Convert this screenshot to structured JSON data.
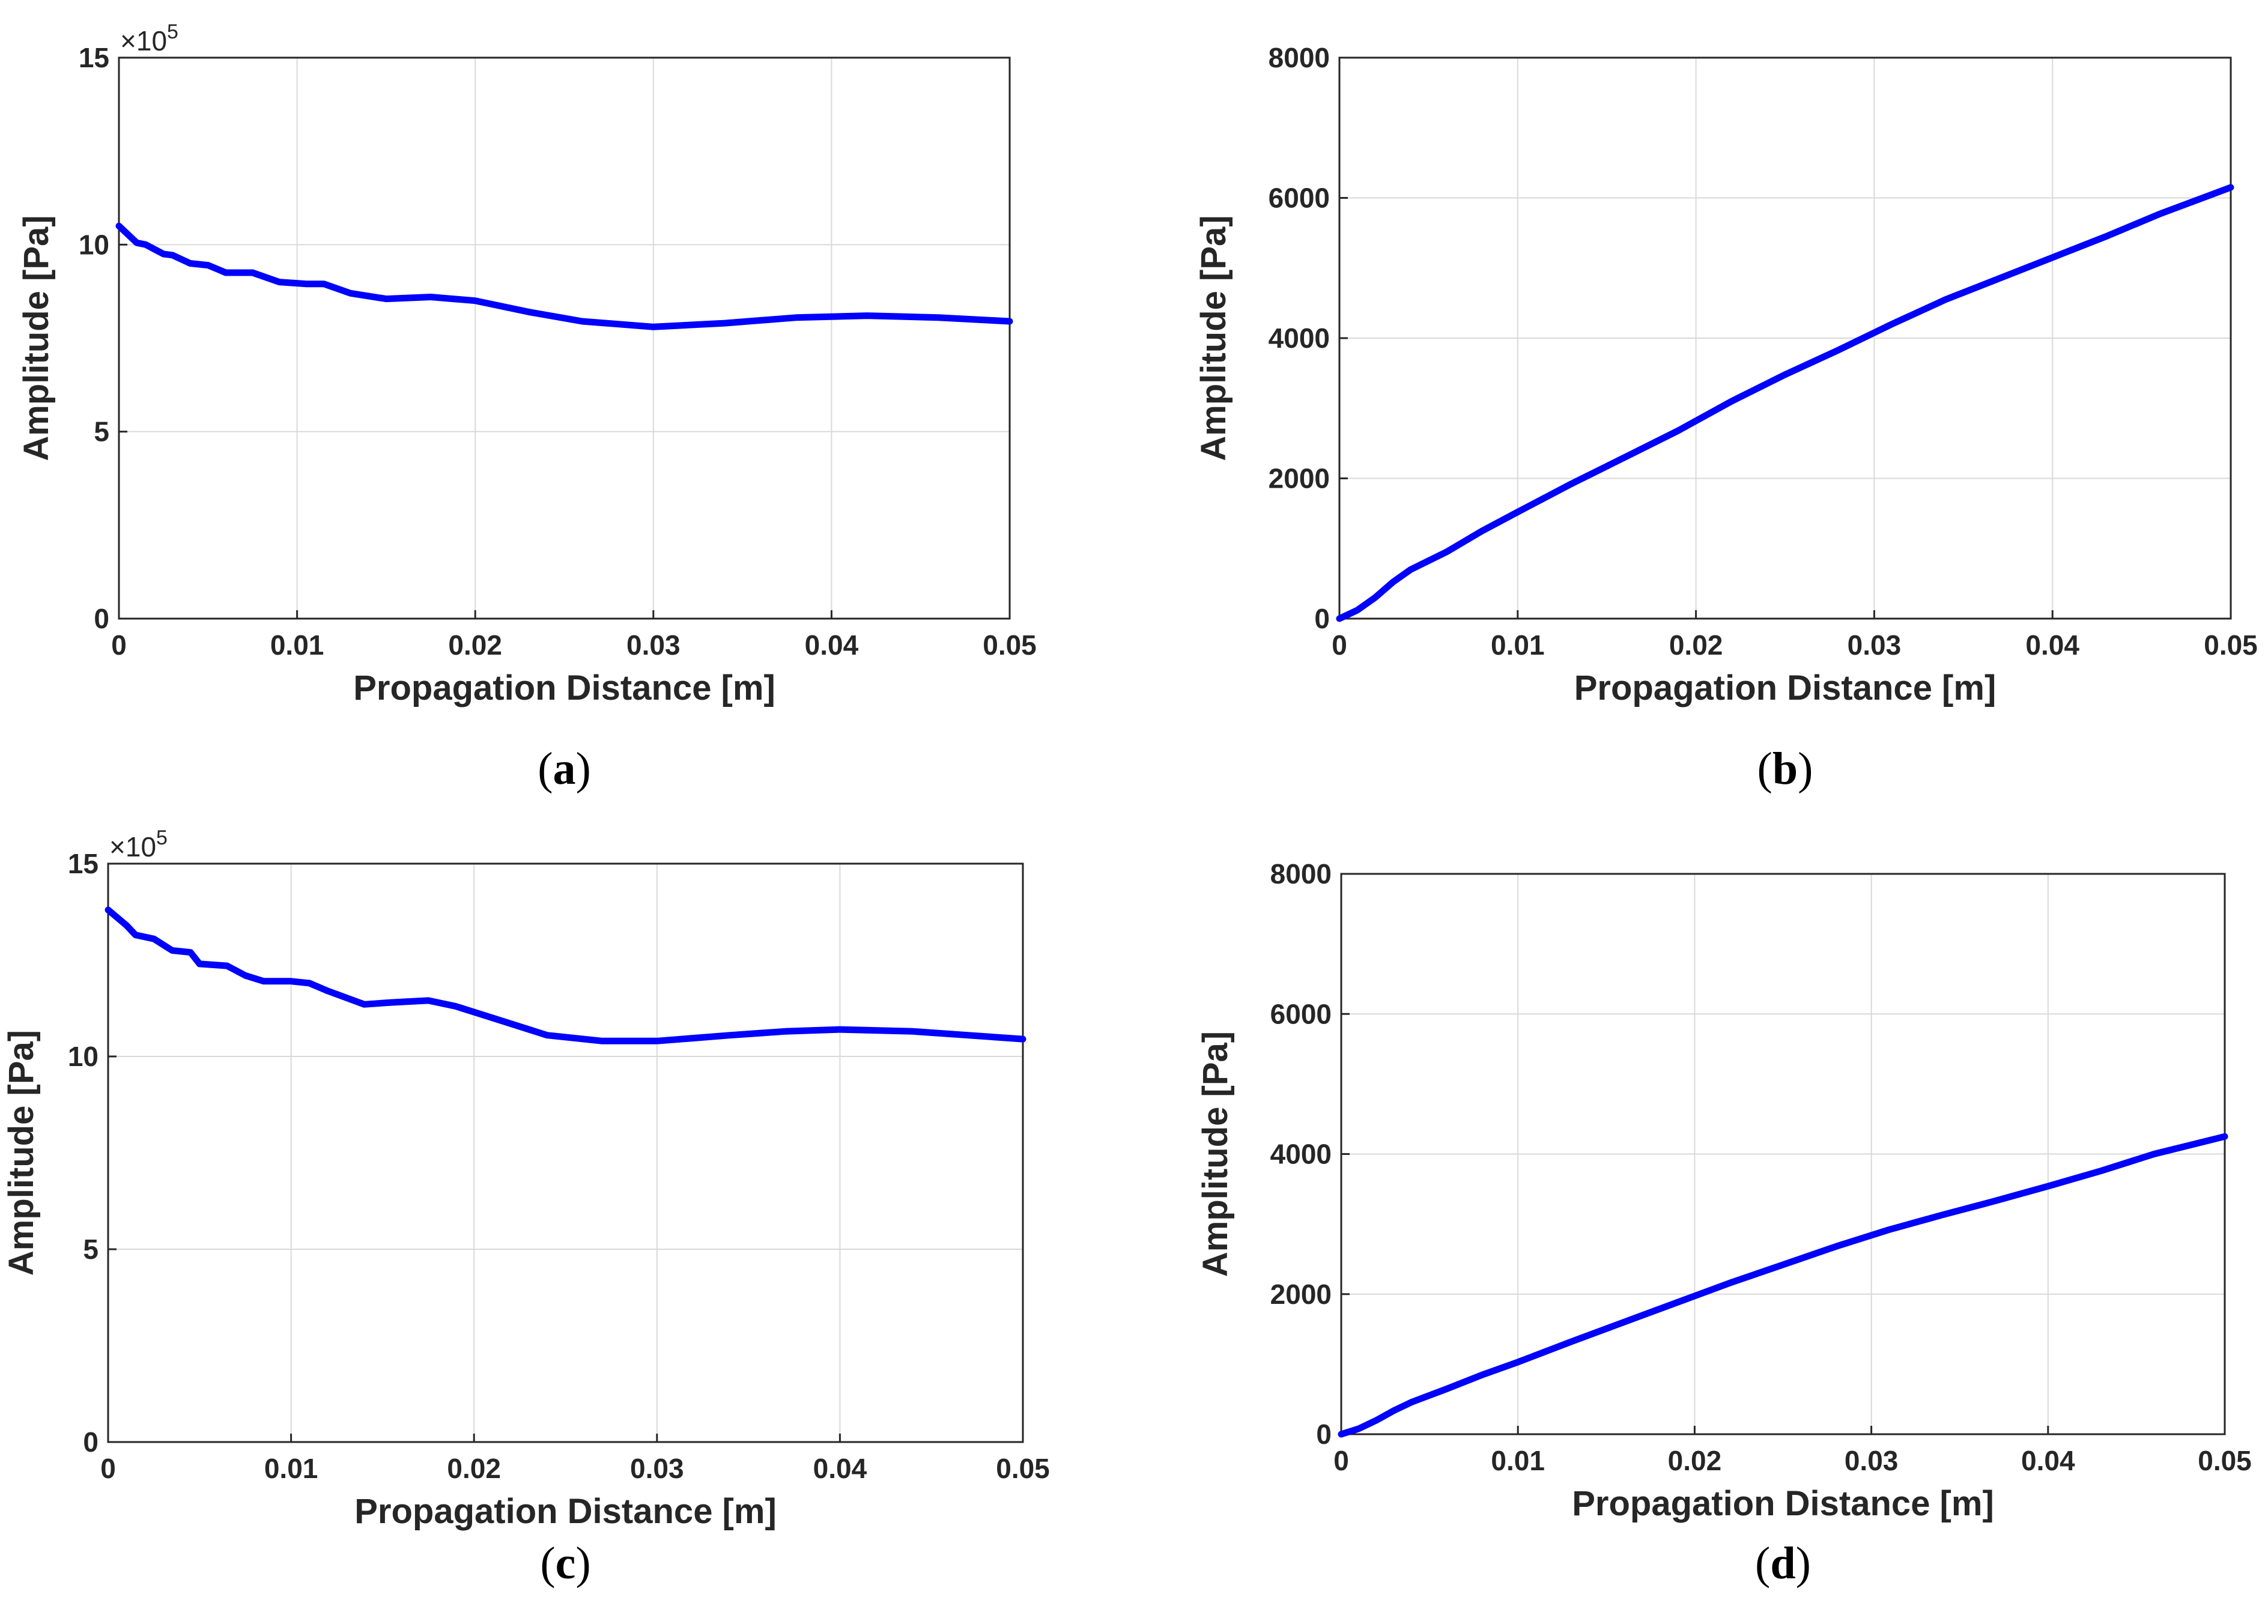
{
  "colors": {
    "series": "#0000ff",
    "axis": "#262626",
    "grid": "#d9d9d9",
    "background": "#ffffff"
  },
  "chart_data": [
    {
      "panel": "a",
      "type": "line",
      "caption": {
        "open": "(",
        "letter": "a",
        "close": ")"
      },
      "title": "",
      "xlabel": "Propagation Distance [m]",
      "ylabel": "Amplitude [Pa]",
      "xlim": [
        0,
        0.05
      ],
      "ylim": [
        0,
        15
      ],
      "x_ticks": [
        "0",
        "0.01",
        "0.02",
        "0.03",
        "0.04",
        "0.05"
      ],
      "y_ticks": [
        "0",
        "5",
        "10",
        "15"
      ],
      "y_scale": {
        "text": "×10",
        "exponent": "5"
      },
      "grid": true,
      "series": [
        {
          "name": "Amplitude",
          "x": [
            0,
            0.001,
            0.0015,
            0.0025,
            0.003,
            0.004,
            0.005,
            0.006,
            0.0075,
            0.009,
            0.0105,
            0.0115,
            0.013,
            0.015,
            0.0175,
            0.02,
            0.023,
            0.026,
            0.03,
            0.034,
            0.038,
            0.042,
            0.046,
            0.05
          ],
          "y": [
            10.5,
            10.05,
            10.0,
            9.75,
            9.72,
            9.5,
            9.45,
            9.25,
            9.25,
            9.0,
            8.95,
            8.95,
            8.7,
            8.55,
            8.6,
            8.5,
            8.2,
            7.95,
            7.8,
            7.9,
            8.05,
            8.1,
            8.05,
            7.95
          ]
        }
      ]
    },
    {
      "panel": "b",
      "type": "line",
      "caption": {
        "open": "(",
        "letter": "b",
        "close": ")"
      },
      "title": "",
      "xlabel": "Propagation Distance [m]",
      "ylabel": "Amplitude [Pa]",
      "xlim": [
        0,
        0.05
      ],
      "ylim": [
        0,
        8000
      ],
      "x_ticks": [
        "0",
        "0.01",
        "0.02",
        "0.03",
        "0.04",
        "0.05"
      ],
      "y_ticks": [
        "0",
        "2000",
        "4000",
        "6000",
        "8000"
      ],
      "grid": true,
      "series": [
        {
          "name": "Amplitude",
          "x": [
            0,
            0.001,
            0.002,
            0.003,
            0.004,
            0.006,
            0.008,
            0.01,
            0.013,
            0.016,
            0.019,
            0.022,
            0.025,
            0.028,
            0.031,
            0.034,
            0.037,
            0.04,
            0.043,
            0.046,
            0.05
          ],
          "y": [
            0,
            120,
            300,
            520,
            700,
            950,
            1250,
            1520,
            1920,
            2300,
            2680,
            3100,
            3480,
            3830,
            4200,
            4550,
            4850,
            5150,
            5450,
            5770,
            6150
          ]
        }
      ]
    },
    {
      "panel": "c",
      "type": "line",
      "caption": {
        "open": "(",
        "letter": "c",
        "close": ")"
      },
      "title": "",
      "xlabel": "Propagation Distance [m]",
      "ylabel": "Amplitude [Pa]",
      "xlim": [
        0,
        0.05
      ],
      "ylim": [
        0,
        15
      ],
      "x_ticks": [
        "0",
        "0.01",
        "0.02",
        "0.03",
        "0.04",
        "0.05"
      ],
      "y_ticks": [
        "0",
        "5",
        "10",
        "15"
      ],
      "y_scale": {
        "text": "×10",
        "exponent": "5"
      },
      "grid": true,
      "series": [
        {
          "name": "Amplitude",
          "x": [
            0,
            0.001,
            0.0015,
            0.002,
            0.0025,
            0.0035,
            0.0045,
            0.005,
            0.0065,
            0.0075,
            0.0085,
            0.01,
            0.011,
            0.012,
            0.014,
            0.0155,
            0.0175,
            0.019,
            0.021,
            0.024,
            0.027,
            0.03,
            0.034,
            0.037,
            0.04,
            0.044,
            0.047,
            0.05
          ],
          "y": [
            13.8,
            13.4,
            13.15,
            13.1,
            13.05,
            12.75,
            12.7,
            12.4,
            12.35,
            12.1,
            11.95,
            11.95,
            11.9,
            11.7,
            11.35,
            11.4,
            11.45,
            11.3,
            11.0,
            10.55,
            10.4,
            10.4,
            10.55,
            10.65,
            10.7,
            10.65,
            10.55,
            10.45
          ]
        }
      ]
    },
    {
      "panel": "d",
      "type": "line",
      "caption": {
        "open": "(",
        "letter": "d",
        "close": ")"
      },
      "title": "",
      "xlabel": "Propagation Distance [m]",
      "ylabel": "Amplitude [Pa]",
      "xlim": [
        0,
        0.05
      ],
      "ylim": [
        0,
        8000
      ],
      "x_ticks": [
        "0",
        "0.01",
        "0.02",
        "0.03",
        "0.04",
        "0.05"
      ],
      "y_ticks": [
        "0",
        "2000",
        "4000",
        "6000",
        "8000"
      ],
      "grid": true,
      "series": [
        {
          "name": "Amplitude",
          "x": [
            0,
            0.001,
            0.002,
            0.003,
            0.004,
            0.006,
            0.008,
            0.01,
            0.013,
            0.016,
            0.019,
            0.022,
            0.025,
            0.028,
            0.031,
            0.034,
            0.037,
            0.04,
            0.043,
            0.046,
            0.05
          ],
          "y": [
            0,
            80,
            200,
            340,
            460,
            650,
            850,
            1030,
            1320,
            1600,
            1880,
            2160,
            2420,
            2680,
            2920,
            3130,
            3330,
            3540,
            3760,
            4000,
            4250
          ]
        }
      ]
    }
  ]
}
